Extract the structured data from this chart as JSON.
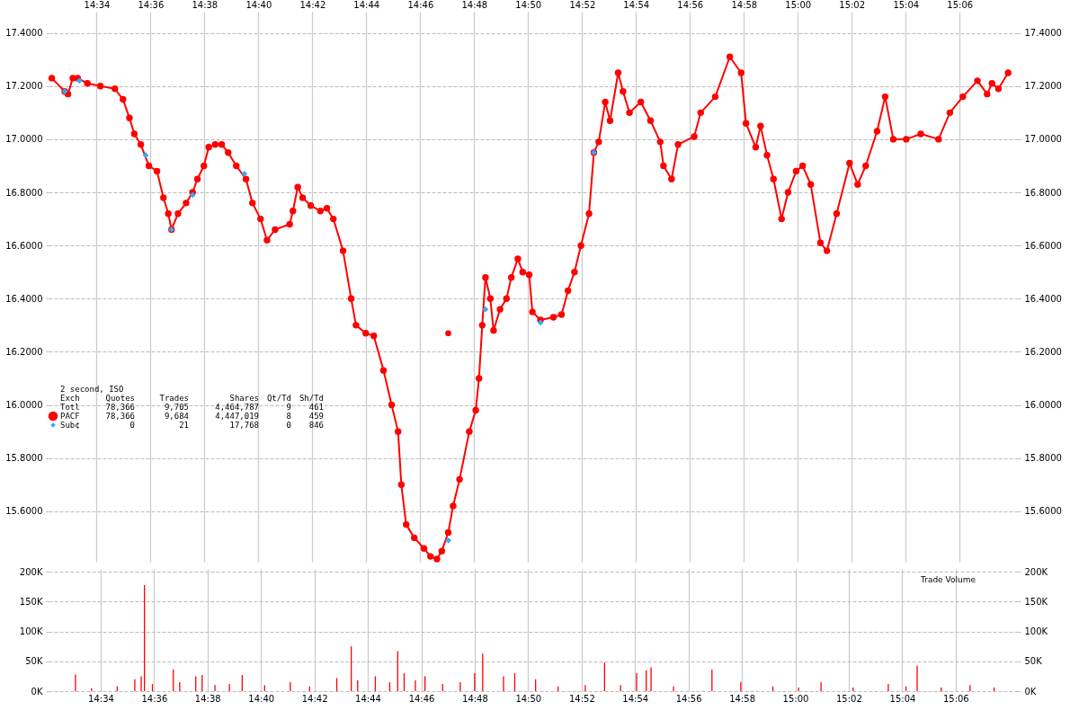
{
  "chart_data": [
    {
      "type": "line",
      "grid": true,
      "legend": "left",
      "xlim": [
        14.537,
        15.136
      ],
      "xticks": [
        {
          "value": 14.5667,
          "label": "14:34"
        },
        {
          "value": 14.6,
          "label": "14:36"
        },
        {
          "value": 14.6333,
          "label": "14:38"
        },
        {
          "value": 14.6667,
          "label": "14:40"
        },
        {
          "value": 14.7,
          "label": "14:42"
        },
        {
          "value": 14.7333,
          "label": "14:44"
        },
        {
          "value": 14.7667,
          "label": "14:46"
        },
        {
          "value": 14.8,
          "label": "14:48"
        },
        {
          "value": 14.8333,
          "label": "14:50"
        },
        {
          "value": 14.8667,
          "label": "14:52"
        },
        {
          "value": 14.9,
          "label": "14:54"
        },
        {
          "value": 14.9333,
          "label": "14:56"
        },
        {
          "value": 14.9667,
          "label": "14:58"
        },
        {
          "value": 15.0,
          "label": "15:00"
        },
        {
          "value": 15.0333,
          "label": "15:02"
        },
        {
          "value": 15.0667,
          "label": "15:04"
        },
        {
          "value": 15.1,
          "label": "15:06"
        }
      ],
      "ylim": [
        15.41,
        17.48
      ],
      "yticks": [
        {
          "value": 15.6,
          "label": "15.6000"
        },
        {
          "value": 15.8,
          "label": "15.8000"
        },
        {
          "value": 16.0,
          "label": "16.0000"
        },
        {
          "value": 16.2,
          "label": "16.2000"
        },
        {
          "value": 16.4,
          "label": "16.4000"
        },
        {
          "value": 16.6,
          "label": "16.6000"
        },
        {
          "value": 16.8,
          "label": "16.8000"
        },
        {
          "value": 17.0,
          "label": "17.0000"
        },
        {
          "value": 17.2,
          "label": "17.2000"
        },
        {
          "value": 17.4,
          "label": "17.4000"
        }
      ],
      "y2lim": [
        15.41,
        17.48
      ],
      "y2ticks": [
        {
          "value": 15.6,
          "label": "15.6000"
        },
        {
          "value": 15.8,
          "label": "15.8000"
        },
        {
          "value": 16.0,
          "label": "16.0000"
        },
        {
          "value": 16.2,
          "label": "16.2000"
        },
        {
          "value": 16.4,
          "label": "16.4000"
        },
        {
          "value": 16.6,
          "label": "16.6000"
        },
        {
          "value": 16.8,
          "label": "16.8000"
        },
        {
          "value": 17.0,
          "label": "17.0000"
        },
        {
          "value": 17.2,
          "label": "17.2000"
        },
        {
          "value": 17.4,
          "label": "17.4000"
        }
      ],
      "annotations": [
        "2 second, ISO",
        "Exch",
        "Quotes",
        "Trades",
        "Shares",
        "Qt/Td",
        "Sh/Td",
        "Totl",
        "78,366",
        "9,705",
        "4,464,787",
        "9",
        "461",
        "78,366",
        "9,684",
        "4,447,019",
        "8",
        "459",
        "0",
        "21",
        "17,768",
        "0",
        "846"
      ],
      "series": [
        {
          "name": "PACF",
          "type": "line",
          "marker": "circle",
          "color": "#ff0000",
          "x": [
            14.539,
            14.547,
            14.549,
            14.552,
            14.555,
            14.561,
            14.569,
            14.578,
            14.583,
            14.587,
            14.59,
            14.594,
            14.599,
            14.604,
            14.608,
            14.611,
            14.613,
            14.617,
            14.622,
            14.626,
            14.629,
            14.633,
            14.636,
            14.64,
            14.644,
            14.648,
            14.653,
            14.659,
            14.663,
            14.668,
            14.672,
            14.677,
            14.686,
            14.688,
            14.691,
            14.694,
            14.699,
            14.705,
            14.709,
            14.713,
            14.719,
            14.724,
            14.727,
            14.733,
            14.738,
            14.744,
            14.749,
            14.753,
            14.755,
            14.758,
            14.763,
            14.769,
            14.773,
            14.777,
            14.78,
            14.784,
            14.787,
            14.791,
            14.797,
            14.801,
            14.803,
            14.805,
            14.807,
            14.81,
            14.812,
            14.816,
            14.82,
            14.823,
            14.827,
            14.83,
            14.834,
            14.836,
            14.841,
            14.849,
            14.854,
            14.858,
            14.862,
            14.866,
            14.871,
            14.874,
            14.877,
            14.881,
            14.884,
            14.889,
            14.892,
            14.896,
            14.903,
            14.909,
            14.915,
            14.917,
            14.922,
            14.926,
            14.936,
            14.94,
            14.949,
            14.958,
            14.965,
            14.968,
            14.974,
            14.977,
            14.981,
            14.985,
            14.99,
            14.994,
            14.999,
            15.003,
            15.008,
            15.014,
            15.018,
            15.024,
            15.032,
            15.037,
            15.042,
            15.049,
            15.054,
            15.059,
            15.067,
            15.076,
            15.087,
            15.094,
            15.102,
            15.111,
            15.117,
            15.12,
            15.124,
            15.13
          ],
          "values": [
            17.23,
            17.18,
            17.17,
            17.23,
            17.23,
            17.21,
            17.2,
            17.19,
            17.15,
            17.08,
            17.02,
            16.98,
            16.9,
            16.88,
            16.78,
            16.72,
            16.66,
            16.72,
            16.76,
            16.8,
            16.85,
            16.9,
            16.97,
            16.98,
            16.98,
            16.95,
            16.9,
            16.85,
            16.76,
            16.7,
            16.62,
            16.66,
            16.68,
            16.73,
            16.82,
            16.78,
            16.75,
            16.73,
            16.74,
            16.7,
            16.58,
            16.4,
            16.3,
            16.27,
            16.26,
            16.13,
            16.0,
            15.9,
            15.7,
            15.55,
            15.5,
            15.46,
            15.43,
            15.42,
            15.45,
            15.52,
            15.62,
            15.72,
            15.9,
            15.98,
            16.1,
            16.3,
            16.48,
            16.4,
            16.28,
            16.36,
            16.4,
            16.48,
            16.55,
            16.5,
            16.49,
            16.35,
            16.32,
            16.33,
            16.34,
            16.43,
            16.5,
            16.6,
            16.72,
            16.95,
            16.99,
            17.14,
            17.07,
            17.25,
            17.18,
            17.1,
            17.14,
            17.07,
            16.99,
            16.9,
            16.85,
            16.98,
            17.01,
            17.1,
            17.16,
            17.31,
            17.25,
            17.06,
            16.97,
            17.05,
            16.94,
            16.85,
            16.7,
            16.8,
            16.88,
            16.9,
            16.83,
            16.61,
            16.58,
            16.72,
            16.91,
            16.83,
            16.9,
            17.03,
            17.16,
            17.0,
            17.0,
            17.02,
            17.0,
            17.1,
            17.16,
            17.22,
            17.17,
            17.21,
            17.19,
            17.25
          ]
        },
        {
          "name": "Sub¢",
          "type": "scatter",
          "marker": "diamond",
          "color": "#33aaff",
          "x": [
            14.547,
            14.556,
            14.597,
            14.613,
            14.626,
            14.658,
            14.784,
            14.807,
            14.841,
            14.874
          ],
          "values": [
            17.18,
            17.22,
            16.94,
            16.66,
            16.79,
            16.87,
            15.49,
            16.36,
            16.31,
            16.95
          ]
        },
        {
          "type": "scatter",
          "marker": "circle",
          "color": "#ff0000",
          "x": [
            14.784
          ],
          "values": [
            16.27
          ]
        }
      ]
    },
    {
      "type": "bar",
      "grid": true,
      "color": "#ff0000",
      "xlim": [
        14.537,
        15.136
      ],
      "xticks": [
        {
          "value": 14.5667,
          "label": "14:34"
        },
        {
          "value": 14.6,
          "label": "14:36"
        },
        {
          "value": 14.6333,
          "label": "14:38"
        },
        {
          "value": 14.6667,
          "label": "14:40"
        },
        {
          "value": 14.7,
          "label": "14:42"
        },
        {
          "value": 14.7333,
          "label": "14:44"
        },
        {
          "value": 14.7667,
          "label": "14:46"
        },
        {
          "value": 14.8,
          "label": "14:48"
        },
        {
          "value": 14.8333,
          "label": "14:50"
        },
        {
          "value": 14.8667,
          "label": "14:52"
        },
        {
          "value": 14.9,
          "label": "14:54"
        },
        {
          "value": 14.9333,
          "label": "14:56"
        },
        {
          "value": 14.9667,
          "label": "14:58"
        },
        {
          "value": 15.0,
          "label": "15:00"
        },
        {
          "value": 15.0333,
          "label": "15:02"
        },
        {
          "value": 15.0667,
          "label": "15:04"
        },
        {
          "value": 15.1,
          "label": "15:06"
        }
      ],
      "ylim": [
        0,
        205000
      ],
      "yticks": [
        {
          "value": 0,
          "label": "0K"
        },
        {
          "value": 50000,
          "label": "50K"
        },
        {
          "value": 100000,
          "label": "100K"
        },
        {
          "value": 150000,
          "label": "150K"
        },
        {
          "value": 200000,
          "label": "200K"
        }
      ],
      "y2lim": [
        0,
        205000
      ],
      "y2ticks": [
        {
          "value": 0,
          "label": "0K"
        },
        {
          "value": 50000,
          "label": "50K"
        },
        {
          "value": 100000,
          "label": "100K"
        },
        {
          "value": 150000,
          "label": "150K"
        },
        {
          "value": 200000,
          "label": "200K"
        }
      ],
      "annotations": [
        "Trade Volume"
      ],
      "x": [
        14.551,
        14.561,
        14.577,
        14.588,
        14.592,
        14.594,
        14.599,
        14.612,
        14.616,
        14.626,
        14.63,
        14.638,
        14.647,
        14.655,
        14.669,
        14.685,
        14.697,
        14.714,
        14.723,
        14.727,
        14.738,
        14.747,
        14.752,
        14.756,
        14.763,
        14.769,
        14.78,
        14.791,
        14.8,
        14.805,
        14.818,
        14.825,
        14.838,
        14.852,
        14.869,
        14.881,
        14.891,
        14.901,
        14.907,
        14.91,
        14.924,
        14.948,
        14.966,
        14.986,
        15.002,
        15.016,
        15.036,
        15.058,
        15.069,
        15.076,
        15.091,
        15.109,
        15.124
      ],
      "values": [
        28000,
        5000,
        8000,
        20000,
        25000,
        178000,
        12000,
        36000,
        15000,
        25000,
        27000,
        10000,
        12000,
        27000,
        10000,
        15000,
        8000,
        22000,
        75000,
        18000,
        25000,
        15000,
        67000,
        30000,
        18000,
        25000,
        12000,
        15000,
        30000,
        63000,
        25000,
        30000,
        20000,
        8000,
        10000,
        48000,
        10000,
        30000,
        35000,
        40000,
        8000,
        36000,
        15000,
        8000,
        6000,
        15000,
        6000,
        12000,
        8000,
        43000,
        6000,
        10000,
        6000
      ]
    }
  ]
}
